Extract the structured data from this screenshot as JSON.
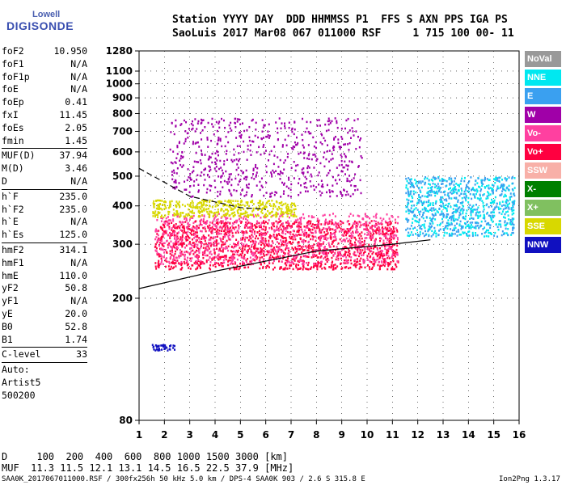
{
  "logo": {
    "top": "Lowell",
    "bottom": "DIGISONDE"
  },
  "header": {
    "line1": "Station YYYY DAY  DDD HHMMSS P1  FFS S AXN PPS IGA PS",
    "line2": "SaoLuis 2017 Mar08 067 011000 RSF     1 715 100 00- 11"
  },
  "params": {
    "g1": [
      [
        "foF2",
        "10.950"
      ],
      [
        "foF1",
        "N/A"
      ],
      [
        "foF1p",
        "N/A"
      ],
      [
        "foE",
        "N/A"
      ],
      [
        "foEp",
        "0.41"
      ],
      [
        "fxI",
        "11.45"
      ],
      [
        "foEs",
        "2.05"
      ],
      [
        "fmin",
        "1.45"
      ]
    ],
    "g2": [
      [
        "MUF(D)",
        "37.94"
      ],
      [
        "M(D)",
        "3.46"
      ],
      [
        "D",
        "N/A"
      ]
    ],
    "g3": [
      [
        "h`F",
        "235.0"
      ],
      [
        "h`F2",
        "235.0"
      ],
      [
        "h`E",
        "N/A"
      ],
      [
        "h`Es",
        "125.0"
      ]
    ],
    "g4": [
      [
        "hmF2",
        "314.1"
      ],
      [
        "hmF1",
        "N/A"
      ],
      [
        "hmE",
        "110.0"
      ],
      [
        "yF2",
        "50.8"
      ],
      [
        "yF1",
        "N/A"
      ],
      [
        "yE",
        "20.0"
      ],
      [
        "B0",
        "52.8"
      ],
      [
        "B1",
        "1.74"
      ]
    ],
    "g5": [
      [
        "C-level",
        "33"
      ]
    ],
    "tail": [
      "Auto:",
      "Artist5",
      "500200"
    ]
  },
  "legend": [
    {
      "label": "NoVal",
      "color": "#999999"
    },
    {
      "label": "NNE",
      "color": "#00e8f0"
    },
    {
      "label": "E",
      "color": "#3aa0f0"
    },
    {
      "label": "W",
      "color": "#a000a8"
    },
    {
      "label": "Vo-",
      "color": "#ff40a0"
    },
    {
      "label": "Vo+",
      "color": "#ff0040"
    },
    {
      "label": "SSW",
      "color": "#f8b0a8"
    },
    {
      "label": "X-",
      "color": "#008000"
    },
    {
      "label": "X+",
      "color": "#80c060"
    },
    {
      "label": "SSE",
      "color": "#d8d800"
    },
    {
      "label": "NNW",
      "color": "#1010c0"
    }
  ],
  "footer": {
    "line1": "D     100  200  400  600  800 1000 1500 3000 [km]",
    "line2": "MUF  11.3 11.5 12.1 13.1 14.5 16.5 22.5 37.9 [MHz]",
    "line3": "SAA0K_2017067011000.RSF / 300fx256h 50 kHz 5.0 km / DPS-4 SAA0K 903 / 2.6 S 315.8 E",
    "line4": "Ion2Png 1.3.17"
  },
  "chart_data": {
    "type": "scatter",
    "title": "",
    "xlabel": "",
    "ylabel": "",
    "xlim": [
      1,
      16
    ],
    "ylim": [
      80,
      1280
    ],
    "y_scale": "log",
    "x_ticks": [
      1,
      2,
      3,
      4,
      5,
      6,
      7,
      8,
      9,
      10,
      11,
      12,
      13,
      14,
      15,
      16
    ],
    "y_ticks": [
      80,
      200,
      300,
      400,
      500,
      600,
      700,
      800,
      900,
      1000,
      1100,
      1280
    ],
    "grid": true,
    "traces": [
      {
        "series": "Vo+",
        "x_range": [
          1.6,
          11.2
        ],
        "y_range": [
          250,
          360
        ]
      },
      {
        "series": "Vo-",
        "x_range": [
          1.6,
          11.2
        ],
        "y_range": [
          260,
          380
        ]
      },
      {
        "series": "SSE",
        "x_range": [
          1.5,
          7.2
        ],
        "y_range": [
          370,
          420
        ]
      },
      {
        "series": "W",
        "x_range": [
          2.2,
          9.8
        ],
        "y_range": [
          430,
          780
        ]
      },
      {
        "series": "NNE",
        "x_range": [
          11.5,
          15.8
        ],
        "y_range": [
          320,
          500
        ]
      },
      {
        "series": "E",
        "x_range": [
          11.5,
          15.8
        ],
        "y_range": [
          320,
          500
        ]
      },
      {
        "series": "NNW",
        "x_range": [
          1.5,
          2.4
        ],
        "y_range": [
          136,
          142
        ]
      }
    ],
    "profile_curves": [
      {
        "name": "lower",
        "x": [
          1,
          4,
          8,
          11,
          12.5
        ],
        "y": [
          215,
          245,
          285,
          300,
          310
        ]
      },
      {
        "name": "upper-dashed",
        "x": [
          1,
          3,
          5,
          6
        ],
        "y": [
          530,
          430,
          395,
          390
        ]
      }
    ]
  }
}
